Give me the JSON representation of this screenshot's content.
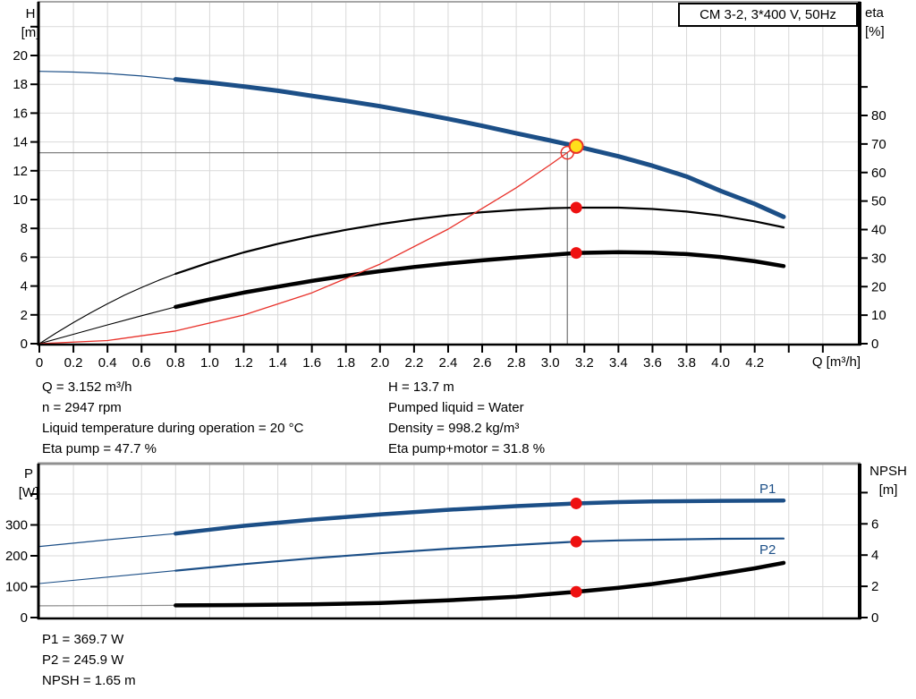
{
  "title_box": {
    "label": "CM 3-2, 3*400 V, 50Hz"
  },
  "top_chart": {
    "left_axis_title": [
      "H",
      "[m]"
    ],
    "right_axis_title": [
      "eta",
      "[%]"
    ],
    "x_axis_title": "Q [m³/h]"
  },
  "bottom_chart": {
    "left_axis_title": [
      "P",
      "[W]"
    ],
    "right_axis_title": [
      "NPSH",
      "[m]"
    ],
    "p1_label": "P1",
    "p2_label": "P2"
  },
  "info_top": {
    "left": [
      "Q = 3.152 m³/h",
      "n = 2947 rpm",
      "Liquid temperature during operation = 20 °C",
      "Eta pump = 47.7 %"
    ],
    "right": [
      "H = 13.7 m",
      "Pumped liquid = Water",
      "Density = 998.2 kg/m³",
      "Eta pump+motor = 31.8 %"
    ]
  },
  "info_bottom": [
    "P1 = 369.7 W",
    "P2 = 245.9 W",
    "NPSH = 1.65 m"
  ],
  "colors": {
    "blue": "#1c4f87",
    "black": "#000000",
    "red": "#e8312a",
    "dot_red": "#ee1111",
    "duty_yellow": "#ffdf1b",
    "crosshair": "#737373",
    "grid": "#d9d9d9",
    "lead_gray": "#8c8c8c"
  },
  "chart_data": [
    {
      "type": "line",
      "title": "CM 3-2, 3*400 V, 50Hz",
      "xlabel": "Q [m³/h]",
      "ylabel_left": "H [m]",
      "ylabel_right": "eta [%]",
      "x_range": [
        0,
        4.82
      ],
      "y_left_range": [
        0,
        23.7
      ],
      "y_right_range": [
        0,
        120
      ],
      "grid": true,
      "x_ticks": [
        "0",
        "0.2",
        "0.4",
        "0.6",
        "0.8",
        "1.0",
        "1.2",
        "1.4",
        "1.6",
        "1.8",
        "2.0",
        "2.2",
        "2.4",
        "2.6",
        "2.8",
        "3.0",
        "3.2",
        "3.4",
        "3.6",
        "3.8",
        "4.0",
        "4.2"
      ],
      "x_minor_ticks": [
        4.4,
        4.6
      ],
      "y_left_ticks": [
        "0",
        "2",
        "4",
        "6",
        "8",
        "10",
        "12",
        "14",
        "16",
        "18",
        "20"
      ],
      "y_left_minor_ticks": [
        22
      ],
      "y_right_ticks": [
        "0",
        "10",
        "20",
        "30",
        "40",
        "50",
        "60",
        "70",
        "80"
      ],
      "y_right_minor_ticks": [
        90
      ],
      "series": [
        {
          "name": "head-curve-lead",
          "axis": "left",
          "color": "blue",
          "width": 1.2,
          "points": [
            [
              0,
              18.9
            ],
            [
              0.2,
              18.85
            ],
            [
              0.4,
              18.75
            ],
            [
              0.6,
              18.58
            ],
            [
              0.8,
              18.35
            ]
          ]
        },
        {
          "name": "head-curve",
          "axis": "left",
          "color": "blue",
          "width": 5,
          "points": [
            [
              0.8,
              18.35
            ],
            [
              1.0,
              18.12
            ],
            [
              1.2,
              17.85
            ],
            [
              1.4,
              17.55
            ],
            [
              1.6,
              17.2
            ],
            [
              1.8,
              16.85
            ],
            [
              2.0,
              16.48
            ],
            [
              2.2,
              16.05
            ],
            [
              2.4,
              15.6
            ],
            [
              2.6,
              15.12
            ],
            [
              2.8,
              14.6
            ],
            [
              3.0,
              14.1
            ],
            [
              3.152,
              13.7
            ],
            [
              3.4,
              13.0
            ],
            [
              3.6,
              12.35
            ],
            [
              3.8,
              11.6
            ],
            [
              4.0,
              10.6
            ],
            [
              4.2,
              9.7
            ],
            [
              4.37,
              8.8
            ]
          ]
        },
        {
          "name": "eta-pump-lead",
          "axis": "right",
          "color": "black",
          "width": 1.1,
          "points": [
            [
              0,
              0
            ],
            [
              0.1,
              3.8
            ],
            [
              0.2,
              7.4
            ],
            [
              0.3,
              10.8
            ],
            [
              0.4,
              14.0
            ],
            [
              0.5,
              17.0
            ],
            [
              0.6,
              19.7
            ],
            [
              0.7,
              22.2
            ],
            [
              0.8,
              24.5
            ]
          ]
        },
        {
          "name": "eta-pump-curve",
          "axis": "right",
          "color": "black",
          "width": 2.2,
          "points": [
            [
              0.8,
              24.5
            ],
            [
              1.0,
              28.5
            ],
            [
              1.2,
              32.0
            ],
            [
              1.4,
              35.0
            ],
            [
              1.6,
              37.6
            ],
            [
              1.8,
              39.9
            ],
            [
              2.0,
              41.9
            ],
            [
              2.2,
              43.6
            ],
            [
              2.4,
              45.0
            ],
            [
              2.6,
              46.1
            ],
            [
              2.8,
              46.9
            ],
            [
              3.0,
              47.5
            ],
            [
              3.152,
              47.7
            ],
            [
              3.4,
              47.7
            ],
            [
              3.6,
              47.2
            ],
            [
              3.8,
              46.3
            ],
            [
              4.0,
              44.9
            ],
            [
              4.2,
              42.9
            ],
            [
              4.37,
              40.8
            ]
          ]
        },
        {
          "name": "eta-pump-motor-lead",
          "axis": "right",
          "color": "black",
          "width": 1.1,
          "points": [
            [
              0,
              0
            ],
            [
              0.2,
              3.3
            ],
            [
              0.4,
              6.6
            ],
            [
              0.6,
              9.8
            ],
            [
              0.8,
              12.9
            ]
          ]
        },
        {
          "name": "eta-pump-motor-curve",
          "axis": "right",
          "color": "black",
          "width": 4.5,
          "points": [
            [
              0.8,
              12.9
            ],
            [
              1.0,
              15.5
            ],
            [
              1.2,
              17.9
            ],
            [
              1.4,
              20.0
            ],
            [
              1.6,
              22.0
            ],
            [
              1.8,
              23.8
            ],
            [
              2.0,
              25.4
            ],
            [
              2.2,
              26.9
            ],
            [
              2.4,
              28.1
            ],
            [
              2.6,
              29.2
            ],
            [
              2.8,
              30.2
            ],
            [
              3.0,
              31.1
            ],
            [
              3.152,
              31.8
            ],
            [
              3.4,
              32.1
            ],
            [
              3.6,
              31.9
            ],
            [
              3.8,
              31.4
            ],
            [
              4.0,
              30.4
            ],
            [
              4.2,
              28.9
            ],
            [
              4.37,
              27.2
            ]
          ]
        },
        {
          "name": "affinity-parabola",
          "axis": "left",
          "color": "red",
          "width": 1.3,
          "points": [
            [
              0,
              0
            ],
            [
              0.4,
              0.22
            ],
            [
              0.8,
              0.88
            ],
            [
              1.2,
              1.99
            ],
            [
              1.6,
              3.53
            ],
            [
              2.0,
              5.52
            ],
            [
              2.4,
              7.95
            ],
            [
              2.8,
              10.82
            ],
            [
              3.0,
              12.42
            ],
            [
              3.1,
              13.26
            ],
            [
              3.152,
              13.7
            ]
          ]
        }
      ],
      "crosshair": {
        "q": 3.1,
        "v": 13.25
      },
      "markers": [
        {
          "kind": "open",
          "q": 3.1,
          "v": 13.25,
          "axis": "left"
        },
        {
          "kind": "dot",
          "q": 3.152,
          "v": 47.7,
          "axis": "right"
        },
        {
          "kind": "dot",
          "q": 3.152,
          "v": 31.8,
          "axis": "right"
        },
        {
          "kind": "duty",
          "q": 3.152,
          "v": 13.7,
          "axis": "left"
        }
      ],
      "duty_point": {
        "Q_m3h": 3.152,
        "H_m": 13.7,
        "eta_pump_pct": 47.7,
        "eta_pump_motor_pct": 31.8
      }
    },
    {
      "type": "line",
      "xlabel": "Q [m³/h]",
      "ylabel_left": "P [W]",
      "ylabel_right": "NPSH [m]",
      "x_range": [
        0,
        4.82
      ],
      "y_left_range": [
        0,
        500
      ],
      "y_right_range": [
        0,
        9.85
      ],
      "grid": true,
      "x_ticks": [],
      "x_minor_ticks": [],
      "y_left_ticks": [
        "0",
        "100",
        "200",
        "300"
      ],
      "y_left_minor_ticks": [
        400
      ],
      "y_right_ticks": [
        "0",
        "2",
        "4",
        "6"
      ],
      "y_right_minor_ticks": [
        8
      ],
      "series": [
        {
          "name": "p1-lead",
          "axis": "left",
          "color": "blue",
          "width": 1.2,
          "points": [
            [
              0,
              230
            ],
            [
              0.4,
              252
            ],
            [
              0.8,
              272
            ]
          ]
        },
        {
          "name": "p1-curve",
          "axis": "left",
          "color": "blue",
          "width": 4.5,
          "points": [
            [
              0.8,
              272
            ],
            [
              1.2,
              297
            ],
            [
              1.6,
              317
            ],
            [
              2.0,
              334
            ],
            [
              2.4,
              349
            ],
            [
              2.8,
              361
            ],
            [
              3.152,
              369.7
            ],
            [
              3.4,
              374
            ],
            [
              3.6,
              376
            ],
            [
              4.0,
              378
            ],
            [
              4.37,
              379
            ]
          ]
        },
        {
          "name": "p2-lead",
          "axis": "left",
          "color": "blue",
          "width": 1.1,
          "points": [
            [
              0,
              110
            ],
            [
              0.4,
              131
            ],
            [
              0.8,
              152
            ]
          ]
        },
        {
          "name": "p2-curve",
          "axis": "left",
          "color": "blue",
          "width": 2.2,
          "points": [
            [
              0.8,
              152
            ],
            [
              1.2,
              173
            ],
            [
              1.6,
              192
            ],
            [
              2.0,
              208
            ],
            [
              2.4,
              223
            ],
            [
              2.8,
              235
            ],
            [
              3.152,
              245.9
            ],
            [
              3.4,
              250
            ],
            [
              3.6,
              252
            ],
            [
              4.0,
              255
            ],
            [
              4.37,
              256
            ]
          ]
        },
        {
          "name": "npsh-lead",
          "axis": "right",
          "color": "lead_gray",
          "width": 1.2,
          "points": [
            [
              0,
              0.75
            ],
            [
              0.4,
              0.76
            ],
            [
              0.8,
              0.78
            ]
          ]
        },
        {
          "name": "npsh-curve",
          "axis": "right",
          "color": "black",
          "width": 4.5,
          "points": [
            [
              0.8,
              0.78
            ],
            [
              1.2,
              0.8
            ],
            [
              1.6,
              0.84
            ],
            [
              2.0,
              0.93
            ],
            [
              2.4,
              1.1
            ],
            [
              2.8,
              1.33
            ],
            [
              3.152,
              1.65
            ],
            [
              3.4,
              1.9
            ],
            [
              3.6,
              2.15
            ],
            [
              3.8,
              2.45
            ],
            [
              4.0,
              2.8
            ],
            [
              4.2,
              3.15
            ],
            [
              4.37,
              3.5
            ]
          ]
        }
      ],
      "markers": [
        {
          "kind": "dot",
          "q": 3.152,
          "v": 369.7,
          "axis": "left"
        },
        {
          "kind": "dot",
          "q": 3.152,
          "v": 245.9,
          "axis": "left"
        },
        {
          "kind": "dot",
          "q": 3.152,
          "v": 1.65,
          "axis": "right"
        }
      ],
      "duty_point": {
        "Q_m3h": 3.152,
        "P1_W": 369.7,
        "P2_W": 245.9,
        "NPSH_m": 1.65
      }
    }
  ]
}
